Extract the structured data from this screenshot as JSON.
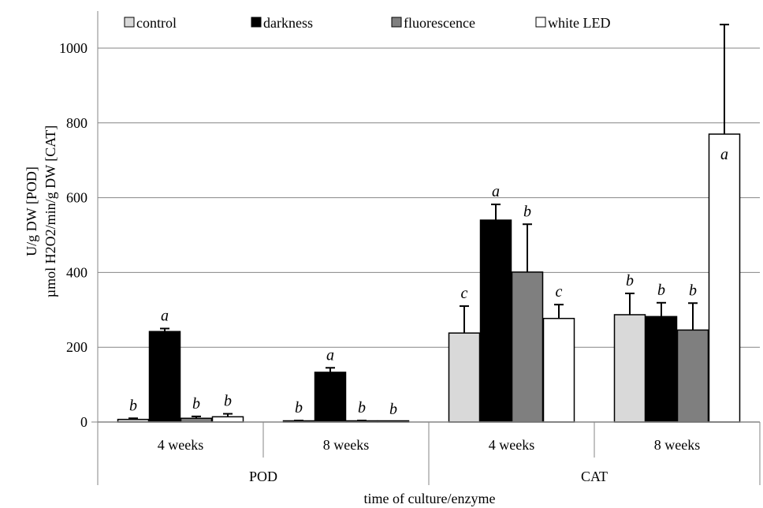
{
  "chart_data": {
    "type": "bar",
    "title": "",
    "ylabel": [
      "U/g DW [POD]",
      "µmol H2O2/min/g DW [CAT]"
    ],
    "xlabel": "time of culture/enzyme",
    "ylim": [
      0,
      1100
    ],
    "yticks": [
      0,
      200,
      400,
      600,
      800,
      1000
    ],
    "grid": true,
    "legend_position": "top",
    "groups": [
      {
        "label": "POD",
        "categories": [
          "4 weeks",
          "8 weeks"
        ]
      },
      {
        "label": "CAT",
        "categories": [
          "4 weeks",
          "8 weeks"
        ]
      }
    ],
    "categories": [
      "4 weeks",
      "8 weeks",
      "4 weeks",
      "8 weeks"
    ],
    "series": [
      {
        "name": "control",
        "color": "#d9d9d9",
        "values": [
          7,
          3,
          238,
          287
        ],
        "errors": [
          3,
          1,
          72,
          57
        ],
        "labels": [
          "b",
          "b",
          "c",
          "b"
        ]
      },
      {
        "name": "darkness",
        "color": "#000000",
        "values": [
          242,
          133,
          540,
          282
        ],
        "errors": [
          8,
          12,
          42,
          37
        ],
        "labels": [
          "a",
          "a",
          "a",
          "b"
        ]
      },
      {
        "name": "fluorescence",
        "color": "#7f7f7f",
        "values": [
          10,
          3,
          401,
          246
        ],
        "errors": [
          5,
          1,
          128,
          72
        ],
        "labels": [
          "b",
          "b",
          "b",
          "b"
        ]
      },
      {
        "name": "white LED",
        "color": "#ffffff",
        "values": [
          14,
          0,
          277,
          770
        ],
        "errors": [
          8,
          0,
          37,
          293
        ],
        "labels": [
          "b",
          "b",
          "c",
          "a"
        ]
      }
    ]
  }
}
